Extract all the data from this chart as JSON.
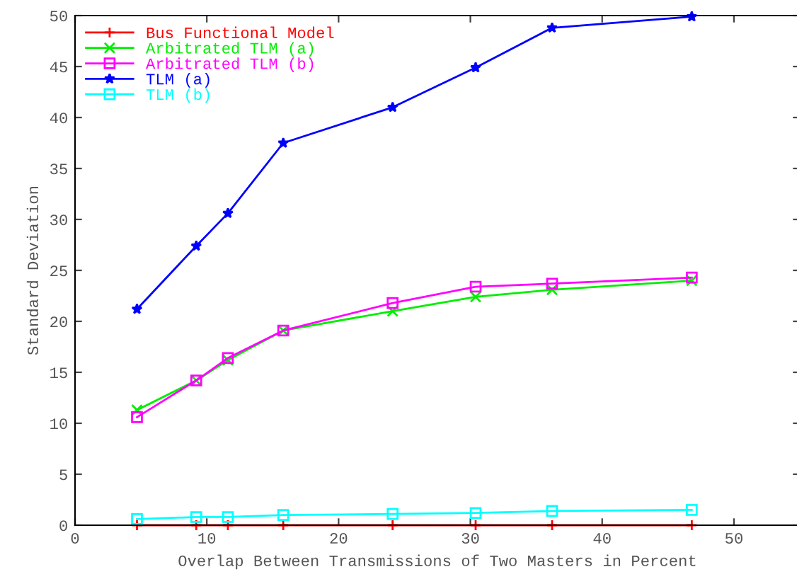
{
  "chart_data": {
    "type": "line",
    "xlabel": "Overlap Between Transmissions of Two Masters in Percent",
    "ylabel": "Standard Deviation",
    "x": [
      4.7,
      9.2,
      11.6,
      15.8,
      24.1,
      30.4,
      36.2,
      46.8
    ],
    "series": [
      {
        "name": "Bus Functional Model",
        "color": "#ff0000",
        "marker": "cross",
        "values": [
          0,
          0,
          0,
          0,
          0,
          0,
          0,
          0
        ]
      },
      {
        "name": "Arbitrated TLM (a)",
        "color": "#00ee00",
        "marker": "x",
        "values": [
          11.3,
          14.2,
          16.2,
          19.1,
          21.0,
          22.4,
          23.1,
          24.0
        ]
      },
      {
        "name": "Arbitrated TLM (b)",
        "color": "#ff00ff",
        "marker": "square",
        "values": [
          10.6,
          14.2,
          16.4,
          19.1,
          21.8,
          23.4,
          23.7,
          24.3
        ]
      },
      {
        "name": "TLM (a)",
        "color": "#0000ff",
        "marker": "star",
        "values": [
          21.2,
          27.4,
          30.6,
          37.5,
          41.0,
          44.9,
          48.8,
          49.9
        ]
      },
      {
        "name": "TLM (b)",
        "color": "#00ffff",
        "marker": "square",
        "values": [
          0.6,
          0.8,
          0.8,
          1.0,
          1.1,
          1.2,
          1.4,
          1.5
        ]
      }
    ],
    "xlim": [
      0,
      55
    ],
    "ylim": [
      0,
      50
    ],
    "xticks": [
      0,
      10,
      20,
      30,
      40,
      50
    ],
    "yticks": [
      0,
      5,
      10,
      15,
      20,
      25,
      30,
      35,
      40,
      45,
      50
    ],
    "grid": false,
    "legend": "top left",
    "line_style": "solid"
  }
}
